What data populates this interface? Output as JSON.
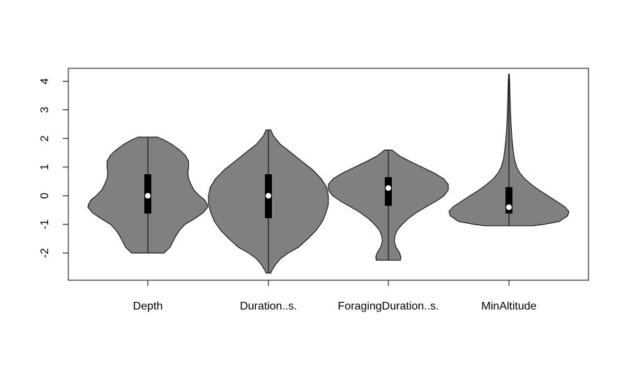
{
  "chart_data": {
    "type": "violin",
    "title": "",
    "xlabel": "",
    "ylabel": "",
    "ylim": [
      -2.95,
      4.45
    ],
    "yticks": [
      -2,
      -1,
      0,
      1,
      2,
      3,
      4
    ],
    "categories": [
      "Depth",
      "Duration..s.",
      "ForagingDuration..s.",
      "MinAltitude"
    ],
    "violin_color": "#808080",
    "box_color": "#000000",
    "median_color": "#ffffff",
    "grid": false,
    "legend": "none",
    "violins": [
      {
        "name": "Depth",
        "min": -2.0,
        "q1": -0.62,
        "median": 0.0,
        "q3": 0.75,
        "max": 2.05,
        "density": [
          [
            -2.0,
            0.27
          ],
          [
            -1.9,
            0.32
          ],
          [
            -1.8,
            0.37
          ],
          [
            -1.6,
            0.42
          ],
          [
            -1.4,
            0.47
          ],
          [
            -1.2,
            0.53
          ],
          [
            -1.0,
            0.62
          ],
          [
            -0.8,
            0.78
          ],
          [
            -0.6,
            0.92
          ],
          [
            -0.4,
            1.0
          ],
          [
            -0.3,
            0.99
          ],
          [
            -0.15,
            0.95
          ],
          [
            0.0,
            0.86
          ],
          [
            0.2,
            0.77
          ],
          [
            0.4,
            0.72
          ],
          [
            0.6,
            0.68
          ],
          [
            0.8,
            0.67
          ],
          [
            1.0,
            0.68
          ],
          [
            1.2,
            0.68
          ],
          [
            1.4,
            0.63
          ],
          [
            1.6,
            0.53
          ],
          [
            1.8,
            0.4
          ],
          [
            1.95,
            0.27
          ],
          [
            2.05,
            0.16
          ]
        ]
      },
      {
        "name": "Duration..s.",
        "min": -2.7,
        "q1": -0.78,
        "median": 0.0,
        "q3": 0.75,
        "max": 2.3,
        "density": [
          [
            -2.7,
            0.04
          ],
          [
            -2.6,
            0.06
          ],
          [
            -2.4,
            0.12
          ],
          [
            -2.2,
            0.2
          ],
          [
            -2.0,
            0.33
          ],
          [
            -1.8,
            0.5
          ],
          [
            -1.5,
            0.66
          ],
          [
            -1.2,
            0.8
          ],
          [
            -0.9,
            0.9
          ],
          [
            -0.6,
            0.96
          ],
          [
            -0.3,
            1.0
          ],
          [
            0.0,
            1.0
          ],
          [
            0.3,
            0.97
          ],
          [
            0.6,
            0.88
          ],
          [
            0.9,
            0.74
          ],
          [
            1.2,
            0.56
          ],
          [
            1.5,
            0.38
          ],
          [
            1.8,
            0.2
          ],
          [
            2.1,
            0.08
          ],
          [
            2.3,
            0.04
          ]
        ]
      },
      {
        "name": "ForagingDuration..s.",
        "min": -2.25,
        "q1": -0.35,
        "median": 0.27,
        "q3": 0.65,
        "max": 1.6,
        "density": [
          [
            -2.25,
            0.2
          ],
          [
            -2.15,
            0.21
          ],
          [
            -2.0,
            0.19
          ],
          [
            -1.8,
            0.13
          ],
          [
            -1.6,
            0.1
          ],
          [
            -1.4,
            0.11
          ],
          [
            -1.2,
            0.15
          ],
          [
            -1.0,
            0.23
          ],
          [
            -0.8,
            0.33
          ],
          [
            -0.6,
            0.46
          ],
          [
            -0.4,
            0.62
          ],
          [
            -0.2,
            0.79
          ],
          [
            0.0,
            0.93
          ],
          [
            0.2,
            1.0
          ],
          [
            0.4,
            1.0
          ],
          [
            0.6,
            0.92
          ],
          [
            0.8,
            0.76
          ],
          [
            1.0,
            0.56
          ],
          [
            1.2,
            0.36
          ],
          [
            1.4,
            0.18
          ],
          [
            1.6,
            0.06
          ]
        ]
      },
      {
        "name": "MinAltitude",
        "min": -1.05,
        "q1": -0.62,
        "median": -0.4,
        "q3": 0.3,
        "max": 4.25,
        "density": [
          [
            -1.05,
            0.4
          ],
          [
            -1.0,
            0.58
          ],
          [
            -0.9,
            0.84
          ],
          [
            -0.7,
            0.98
          ],
          [
            -0.55,
            1.0
          ],
          [
            -0.4,
            0.94
          ],
          [
            -0.2,
            0.8
          ],
          [
            0.0,
            0.65
          ],
          [
            0.2,
            0.5
          ],
          [
            0.4,
            0.37
          ],
          [
            0.6,
            0.26
          ],
          [
            0.8,
            0.18
          ],
          [
            1.0,
            0.13
          ],
          [
            1.3,
            0.09
          ],
          [
            1.6,
            0.07
          ],
          [
            2.0,
            0.05
          ],
          [
            2.5,
            0.035
          ],
          [
            3.0,
            0.025
          ],
          [
            3.5,
            0.018
          ],
          [
            4.0,
            0.01
          ],
          [
            4.25,
            0.005
          ]
        ]
      }
    ]
  }
}
